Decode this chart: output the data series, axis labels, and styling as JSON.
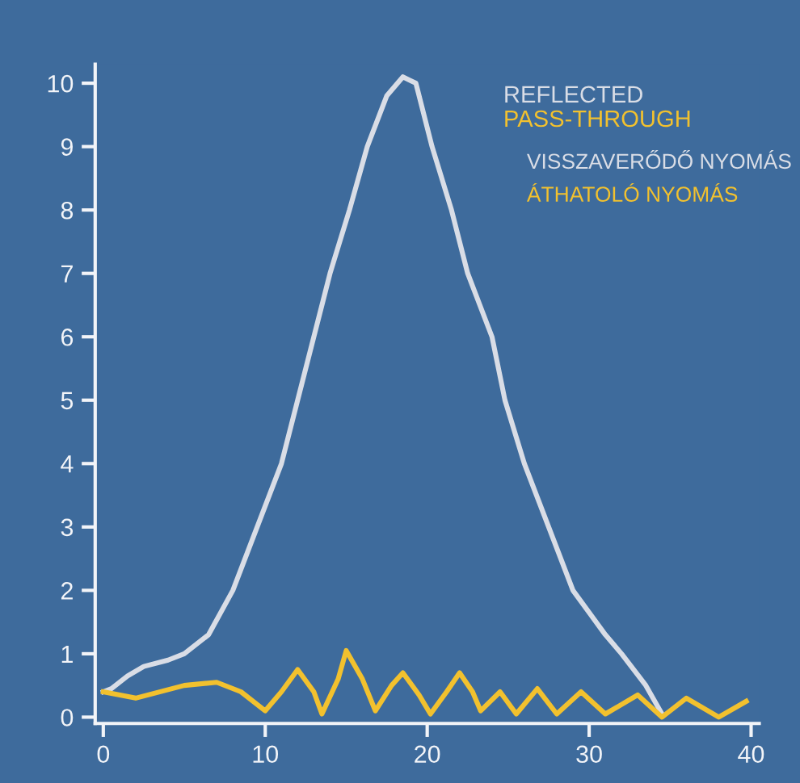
{
  "chart_data": {
    "type": "line",
    "xlim": [
      -0.5,
      40.5
    ],
    "ylim": [
      -0.1,
      10.3
    ],
    "xticks": [
      0,
      10,
      20,
      30,
      40
    ],
    "yticks": [
      0,
      1,
      2,
      3,
      4,
      5,
      6,
      7,
      8,
      9,
      10
    ],
    "grid": false,
    "legend": "top right",
    "marker": "none",
    "line_style": "solid",
    "series": [
      {
        "name": "REFLECTED",
        "color": "#d9dde6",
        "x": [
          0,
          0.5,
          1.5,
          2.5,
          4,
          5,
          6.5,
          8,
          9.5,
          11,
          12,
          13,
          14,
          15.2,
          16.3,
          17.5,
          18.5,
          19.3,
          20.3,
          21.5,
          22.5,
          24,
          24.8,
          26,
          27.5,
          29,
          31,
          32,
          33.5,
          34.5
        ],
        "values": [
          0.4,
          0.45,
          0.65,
          0.8,
          0.9,
          1.0,
          1.3,
          2,
          3,
          4,
          5,
          6,
          7,
          8,
          9,
          9.8,
          10.1,
          10,
          9,
          8,
          7,
          6,
          5,
          4,
          3,
          2,
          1.3,
          1,
          0.5,
          0.05
        ]
      },
      {
        "name": "PASS-THROUGH",
        "color": "#f2c12e",
        "x": [
          0,
          2,
          5,
          7,
          8.5,
          10,
          11,
          12,
          13,
          13.5,
          14.5,
          15,
          16,
          16.8,
          17.8,
          18.5,
          19.5,
          20.2,
          21.2,
          22,
          22.8,
          23.3,
          24.5,
          25.5,
          26.8,
          28,
          29.5,
          31,
          33,
          34.5,
          36,
          38,
          39.7
        ],
        "values": [
          0.4,
          0.3,
          0.5,
          0.55,
          0.4,
          0.1,
          0.4,
          0.75,
          0.4,
          0.05,
          0.6,
          1.05,
          0.6,
          0.1,
          0.5,
          0.7,
          0.35,
          0.05,
          0.4,
          0.7,
          0.4,
          0.1,
          0.4,
          0.05,
          0.45,
          0.05,
          0.4,
          0.05,
          0.35,
          0.0,
          0.3,
          0.0,
          0.25
        ]
      }
    ],
    "annotations": [
      "VISSZAVERŐDŐ NYOMÁS",
      "ÁTHATOLÓ NYOMÁS"
    ]
  }
}
